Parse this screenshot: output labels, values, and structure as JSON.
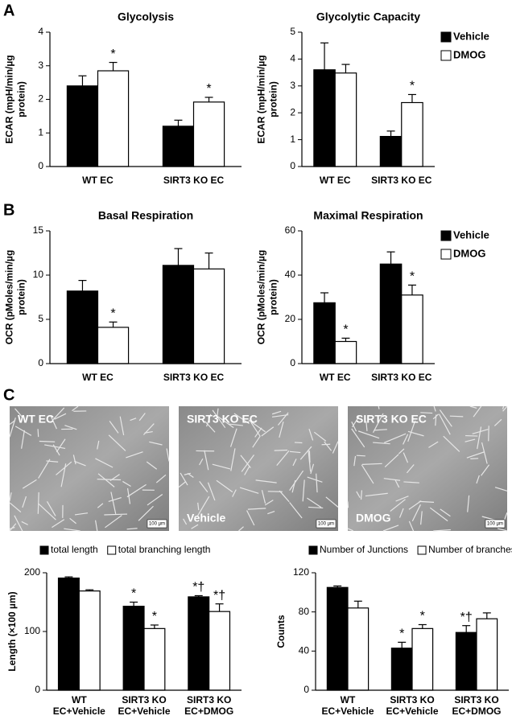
{
  "panel_labels": [
    "A",
    "B",
    "C"
  ],
  "micrographs": [
    {
      "labels": [
        "WT EC"
      ],
      "scale": "100 µm"
    },
    {
      "labels": [
        "SIRT3 KO EC",
        "Vehicle"
      ],
      "scale": "100 µm"
    },
    {
      "labels": [
        "SIRT3 KO EC",
        "DMOG"
      ],
      "scale": "100 µm"
    }
  ],
  "chart_data": [
    {
      "type": "bar",
      "title": "Glycolysis",
      "ylabel": [
        "ECAR (mpH/min/µg",
        "protein)"
      ],
      "categories": [
        "WT EC",
        "SIRT3 KO EC"
      ],
      "ylim": [
        0,
        4
      ],
      "yticks": [
        0,
        1,
        2,
        3,
        4
      ],
      "series": [
        {
          "name": "Vehicle",
          "color": "#000000",
          "values": [
            2.4,
            1.2
          ],
          "errors": [
            0.3,
            0.18
          ],
          "annotations": [
            null,
            null
          ]
        },
        {
          "name": "DMOG",
          "color": "#ffffff",
          "values": [
            2.85,
            1.92
          ],
          "errors": [
            0.25,
            0.14
          ],
          "annotations": [
            "*",
            "*"
          ]
        }
      ],
      "legend": "none"
    },
    {
      "type": "bar",
      "title": "Glycolytic Capacity",
      "ylabel": [
        "ECAR (mpH/min/µg",
        "protein)"
      ],
      "categories": [
        "WT EC",
        "SIRT3 KO EC"
      ],
      "ylim": [
        0,
        5
      ],
      "yticks": [
        0,
        1,
        2,
        3,
        4,
        5
      ],
      "series": [
        {
          "name": "Vehicle",
          "color": "#000000",
          "values": [
            3.6,
            1.12
          ],
          "errors": [
            1.0,
            0.2
          ],
          "annotations": [
            null,
            null
          ]
        },
        {
          "name": "DMOG",
          "color": "#ffffff",
          "values": [
            3.48,
            2.38
          ],
          "errors": [
            0.32,
            0.3
          ],
          "annotations": [
            null,
            "*"
          ]
        }
      ],
      "legend": "right"
    },
    {
      "type": "bar",
      "title": "Basal Respiration",
      "ylabel": [
        "OCR (pMoles/min/µg",
        "protein)"
      ],
      "categories": [
        "WT EC",
        "SIRT3 KO EC"
      ],
      "ylim": [
        0,
        15
      ],
      "yticks": [
        0,
        5,
        10,
        15
      ],
      "series": [
        {
          "name": "Vehicle",
          "color": "#000000",
          "values": [
            8.2,
            11.1
          ],
          "errors": [
            1.2,
            1.9
          ],
          "annotations": [
            null,
            null
          ]
        },
        {
          "name": "DMOG",
          "color": "#ffffff",
          "values": [
            4.1,
            10.7
          ],
          "errors": [
            0.6,
            1.8
          ],
          "annotations": [
            "*",
            null
          ]
        }
      ],
      "legend": "none"
    },
    {
      "type": "bar",
      "title": "Maximal Respiration",
      "ylabel": [
        "OCR (pMoles/min/µg",
        "protein)"
      ],
      "categories": [
        "WT EC",
        "SIRT3 KO EC"
      ],
      "ylim": [
        0,
        60
      ],
      "yticks": [
        0,
        20,
        40,
        60
      ],
      "series": [
        {
          "name": "Vehicle",
          "color": "#000000",
          "values": [
            27.5,
            45
          ],
          "errors": [
            4.5,
            5.5
          ],
          "annotations": [
            null,
            null
          ]
        },
        {
          "name": "DMOG",
          "color": "#ffffff",
          "values": [
            10,
            31
          ],
          "errors": [
            1.5,
            4.5
          ],
          "annotations": [
            "*",
            "*"
          ]
        }
      ],
      "legend": "right"
    },
    {
      "type": "bar",
      "ylabel": [
        "Length (×100 µm)"
      ],
      "categories": [
        [
          "WT",
          "EC+Vehicle"
        ],
        [
          "SIRT3 KO",
          "EC+Vehicle"
        ],
        [
          "SIRT3 KO",
          "EC+DMOG"
        ]
      ],
      "ylim": [
        0,
        200
      ],
      "yticks": [
        0,
        100,
        200
      ],
      "series": [
        {
          "name": "total length",
          "color": "#000000",
          "values": [
            191,
            143,
            159
          ],
          "errors": [
            2,
            7,
            2
          ],
          "annotations": [
            null,
            "*",
            "*†"
          ]
        },
        {
          "name": "total branching length",
          "color": "#ffffff",
          "values": [
            169,
            105,
            134
          ],
          "errors": [
            2,
            6,
            13
          ],
          "annotations": [
            null,
            "*",
            "*†"
          ]
        }
      ],
      "legend": "top"
    },
    {
      "type": "bar",
      "ylabel": [
        "Counts"
      ],
      "categories": [
        [
          "WT",
          "EC+Vehicle"
        ],
        [
          "SIRT3 KO",
          "EC+Vehicle"
        ],
        [
          "SIRT3 KO",
          "EC+DMOG"
        ]
      ],
      "ylim": [
        0,
        120
      ],
      "yticks": [
        0,
        40,
        80,
        120
      ],
      "series": [
        {
          "name": "Number of Junctions",
          "color": "#000000",
          "values": [
            105,
            43,
            59
          ],
          "errors": [
            1.5,
            6,
            7
          ],
          "annotations": [
            null,
            "*",
            "*†"
          ]
        },
        {
          "name": "Number of branches",
          "color": "#ffffff",
          "values": [
            84,
            63,
            73
          ],
          "errors": [
            7,
            4,
            6
          ],
          "annotations": [
            null,
            "*",
            null
          ]
        }
      ],
      "legend": "top"
    }
  ]
}
